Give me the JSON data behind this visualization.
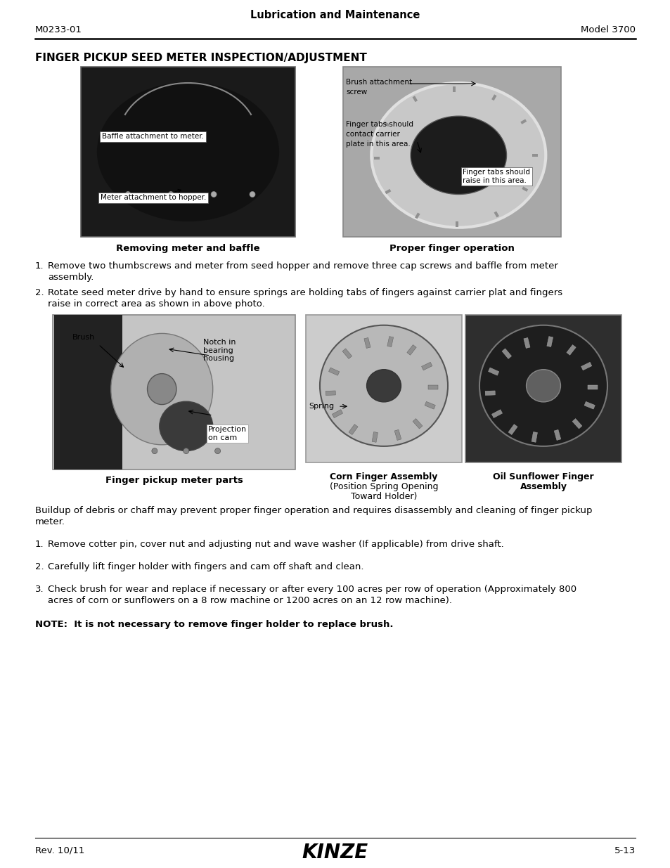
{
  "page_bg": "#ffffff",
  "header_title": "Lubrication and Maintenance",
  "header_left": "M0233-01",
  "header_right": "Model 3700",
  "section_title": "FINGER PICKUP SEED METER INSPECTION/ADJUSTMENT",
  "caption_left": "Removing meter and baffle",
  "caption_right": "Proper finger operation",
  "caption_bottom_left": "Finger pickup meter parts",
  "caption_bottom_mid_line1": "Corn Finger Assembly",
  "caption_bottom_mid_line2": "(Position Spring Opening",
  "caption_bottom_mid_line3": "Toward Holder)",
  "caption_bottom_right_line1": "Oil Sunflower Finger",
  "caption_bottom_right_line2": "Assembly",
  "label1": "Baffle attachment to meter.",
  "label2": "Meter attachment to hopper.",
  "label3a": "Brush attachment",
  "label3b": "screw",
  "label4a": "Finger tabs should",
  "label4b": "contact carrier",
  "label4c": "plate in this area.",
  "label5a": "Finger tabs should",
  "label5b": "raise in this area.",
  "label6": "Brush",
  "label7a": "Notch in",
  "label7b": "bearing",
  "label7c": "housing",
  "label8a": "Projection",
  "label8b": "on cam",
  "label9": "Spring",
  "para3": "Buildup of debris or chaff may prevent proper finger operation and requires disassembly and cleaning of finger pickup\nmeter.",
  "para4": "Remove cotter pin, cover nut and adjusting nut and wave washer (If applicable) from drive shaft.",
  "para5": "Carefully lift finger holder with fingers and cam off shaft and clean.",
  "para6a": "Check brush for wear and replace if necessary or after every 100 acres per row of operation (Approximately 800",
  "para6b": "acres of corn or sunflowers on a 8 row machine or 1200 acres on an 12 row machine).",
  "para1a": "Remove two thumbscrews and meter from seed hopper and remove three cap screws and baffle from meter",
  "para1b": "assembly.",
  "para2a": "Rotate seed meter drive by hand to ensure springs are holding tabs of fingers against carrier plat and fingers",
  "para2b": "raise in correct area as shown in above photo.",
  "note": "NOTE:  It is not necessary to remove finger holder to replace brush.",
  "footer_left": "Rev. 10/11",
  "footer_right": "5-13",
  "img1_bg": "#1e1e1e",
  "img2_bg": "#909090",
  "img3_bg": "#c8c8c8",
  "img4_bg": "#d0d0d0",
  "img5_bg": "#282828"
}
